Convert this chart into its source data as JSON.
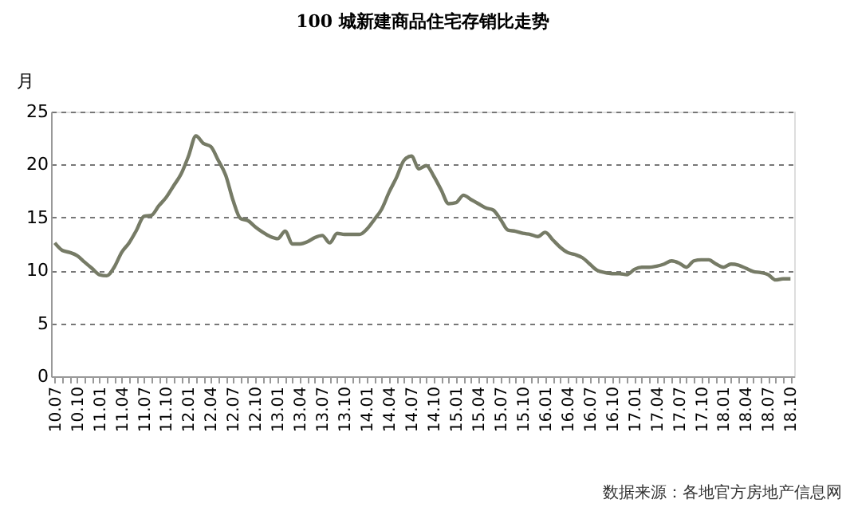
{
  "chart_data": {
    "type": "line",
    "title": "100 城新建商品住宅存销比走势",
    "ylabel": "月",
    "annotations": [
      "数据来源：各地官方房地产信息网"
    ],
    "categories": [
      "10.07",
      null,
      null,
      "10.10",
      null,
      null,
      "11.01",
      null,
      null,
      "11.04",
      null,
      null,
      "11.07",
      null,
      null,
      "11.10",
      null,
      null,
      "12.01",
      null,
      null,
      "12.04",
      null,
      null,
      "12.07",
      null,
      null,
      "12.10",
      null,
      null,
      "13.01",
      null,
      null,
      "13.04",
      null,
      null,
      "13.07",
      null,
      null,
      "13.10",
      null,
      null,
      "14.01",
      null,
      null,
      "14.04",
      null,
      null,
      "14.07",
      null,
      null,
      "14.10",
      null,
      null,
      "15.01",
      null,
      null,
      "15.04",
      null,
      null,
      "15.07",
      null,
      null,
      "15.10",
      null,
      null,
      "16.01",
      null,
      null,
      "16.04",
      null,
      null,
      "16.07",
      null,
      null,
      "16.10",
      null,
      null,
      "17.01",
      null,
      null,
      "17.04",
      null,
      null,
      "17.07",
      null,
      null,
      "17.10",
      null,
      null,
      "18.01",
      null,
      null,
      "18.04",
      null,
      null,
      "18.07",
      null,
      null,
      "18.10"
    ],
    "series": [
      {
        "color": "#767b66",
        "values": [
          12.6,
          11.9,
          11.7,
          11.4,
          10.8,
          10.2,
          9.6,
          9.5,
          10.3,
          11.7,
          12.6,
          13.8,
          15.1,
          15.2,
          16.1,
          16.9,
          18.0,
          19.1,
          20.8,
          22.7,
          22.0,
          21.7,
          20.4,
          19.0,
          16.6,
          14.9,
          14.7,
          14.1,
          13.6,
          13.2,
          13.0,
          13.7,
          12.5,
          12.5,
          12.7,
          13.1,
          13.3,
          12.6,
          13.5,
          13.4,
          13.4,
          13.4,
          13.9,
          14.8,
          15.8,
          17.4,
          18.8,
          20.4,
          20.8,
          19.6,
          19.9,
          18.9,
          17.6,
          16.3,
          16.4,
          17.1,
          16.7,
          16.3,
          15.9,
          15.7,
          14.8,
          13.8,
          13.7,
          13.5,
          13.4,
          13.2,
          13.6,
          12.9,
          12.2,
          11.7,
          11.5,
          11.2,
          10.6,
          10.0,
          9.8,
          9.7,
          9.7,
          9.6,
          10.1,
          10.3,
          10.3,
          10.4,
          10.6,
          10.9,
          10.7,
          10.3,
          10.9,
          11.0,
          11.0,
          10.6,
          10.3,
          10.6,
          10.5,
          10.2,
          9.9,
          9.8,
          9.6,
          9.1,
          9.2,
          9.2
        ]
      }
    ],
    "ylim": [
      0,
      25
    ],
    "yticks": [
      0,
      5,
      10,
      15,
      20,
      25
    ],
    "grid": "y",
    "line_style": "solid",
    "marker": "none"
  }
}
